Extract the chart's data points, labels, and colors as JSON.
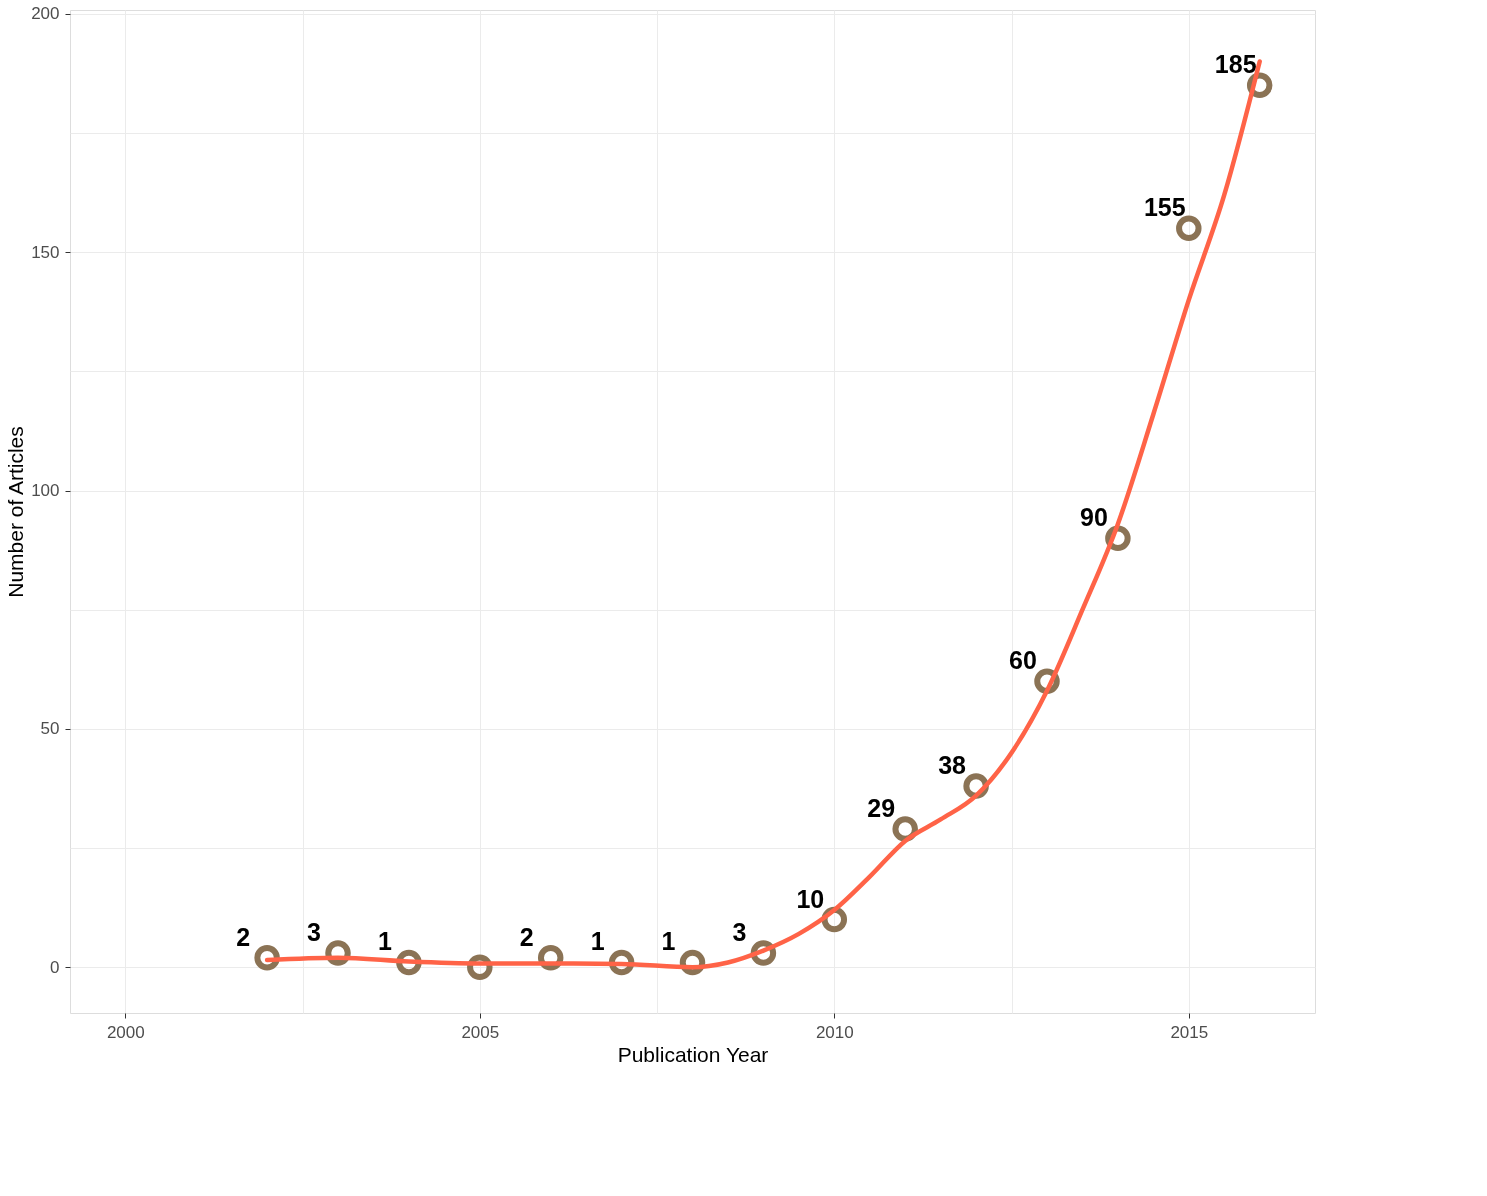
{
  "chart_data": {
    "type": "scatter",
    "xlabel": "Publication Year",
    "ylabel": "Number of Articles",
    "x": [
      2002,
      2003,
      2004,
      2005,
      2006,
      2007,
      2008,
      2009,
      2010,
      2011,
      2012,
      2013,
      2014,
      2015,
      2016
    ],
    "series": [
      {
        "color": "#8b7355",
        "marker": "circle",
        "values": [
          2,
          3,
          1,
          0,
          2,
          1,
          1,
          3,
          10,
          29,
          38,
          60,
          90,
          155,
          185
        ],
        "value_labels": [
          "2",
          "3",
          "1",
          null,
          "2",
          "1",
          "1",
          "3",
          "10",
          "29",
          "38",
          "60",
          "90",
          "155",
          "185"
        ]
      },
      {
        "type": "line",
        "color": "#ff6347",
        "line_style": "solid",
        "x": [
          2002,
          2003,
          2004,
          2005,
          2006,
          2007,
          2008,
          2008.5,
          2009,
          2009.5,
          2010,
          2010.5,
          2011,
          2011.5,
          2012,
          2012.5,
          2013,
          2013.5,
          2014,
          2014.5,
          2015,
          2015.5,
          2016
        ],
        "values": [
          1.5,
          2,
          1.2,
          0.8,
          0.8,
          0.7,
          0,
          1,
          3.5,
          7,
          12,
          19,
          26.5,
          31,
          36,
          45,
          58,
          75,
          93,
          116,
          140,
          162,
          190
        ]
      }
    ],
    "xlim": [
      1999.22,
      2016.78
    ],
    "ylim": [
      -9.6,
      200.8
    ],
    "xticks": [
      2000,
      {
        "value": 2002.5,
        "label": null
      },
      2005,
      {
        "value": 2007.5,
        "label": null
      },
      2010,
      {
        "value": 2012.5,
        "label": null
      },
      2015
    ],
    "yticks": [
      0,
      {
        "value": 25,
        "label": null
      },
      50,
      {
        "value": 75,
        "label": null
      },
      100,
      {
        "value": 125,
        "label": null
      },
      150,
      {
        "value": 175,
        "label": null
      },
      200
    ],
    "grid": true
  }
}
